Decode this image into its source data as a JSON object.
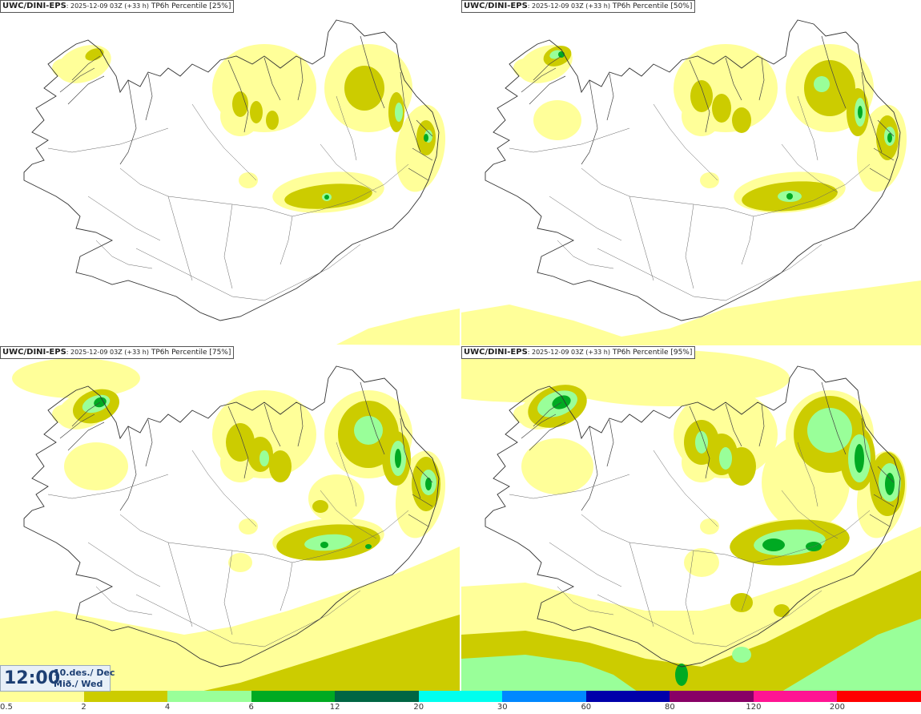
{
  "panels": [
    {
      "model": "UWC/DINI-EPS",
      "run": ": 2025-12-09 03Z (+33 h)",
      "product": "TP6h Percentile [25%]"
    },
    {
      "model": "UWC/DINI-EPS",
      "run": ": 2025-12-09 03Z (+33 h)",
      "product": "TP6h Percentile [50%]"
    },
    {
      "model": "UWC/DINI-EPS",
      "run": ": 2025-12-09 03Z (+33 h)",
      "product": "TP6h Percentile [75%]"
    },
    {
      "model": "UWC/DINI-EPS",
      "run": ": 2025-12-09 03Z (+33 h)",
      "product": "TP6h Percentile [95%]"
    }
  ],
  "valid_time": {
    "time": "12:00",
    "date_line1": "10.des./ Dec",
    "date_line2": "Mið./ Wed"
  },
  "legend": {
    "levels": [
      "0.5",
      "2",
      "4",
      "6",
      "12",
      "20",
      "30",
      "60",
      "80",
      "120",
      "200"
    ],
    "colors": [
      "#ffff99",
      "#cccc00",
      "#99ff99",
      "#00aa22",
      "#006644",
      "#00ffee",
      "#0088ff",
      "#0000aa",
      "#880066",
      "#ff1493",
      "#ff0000"
    ]
  }
}
